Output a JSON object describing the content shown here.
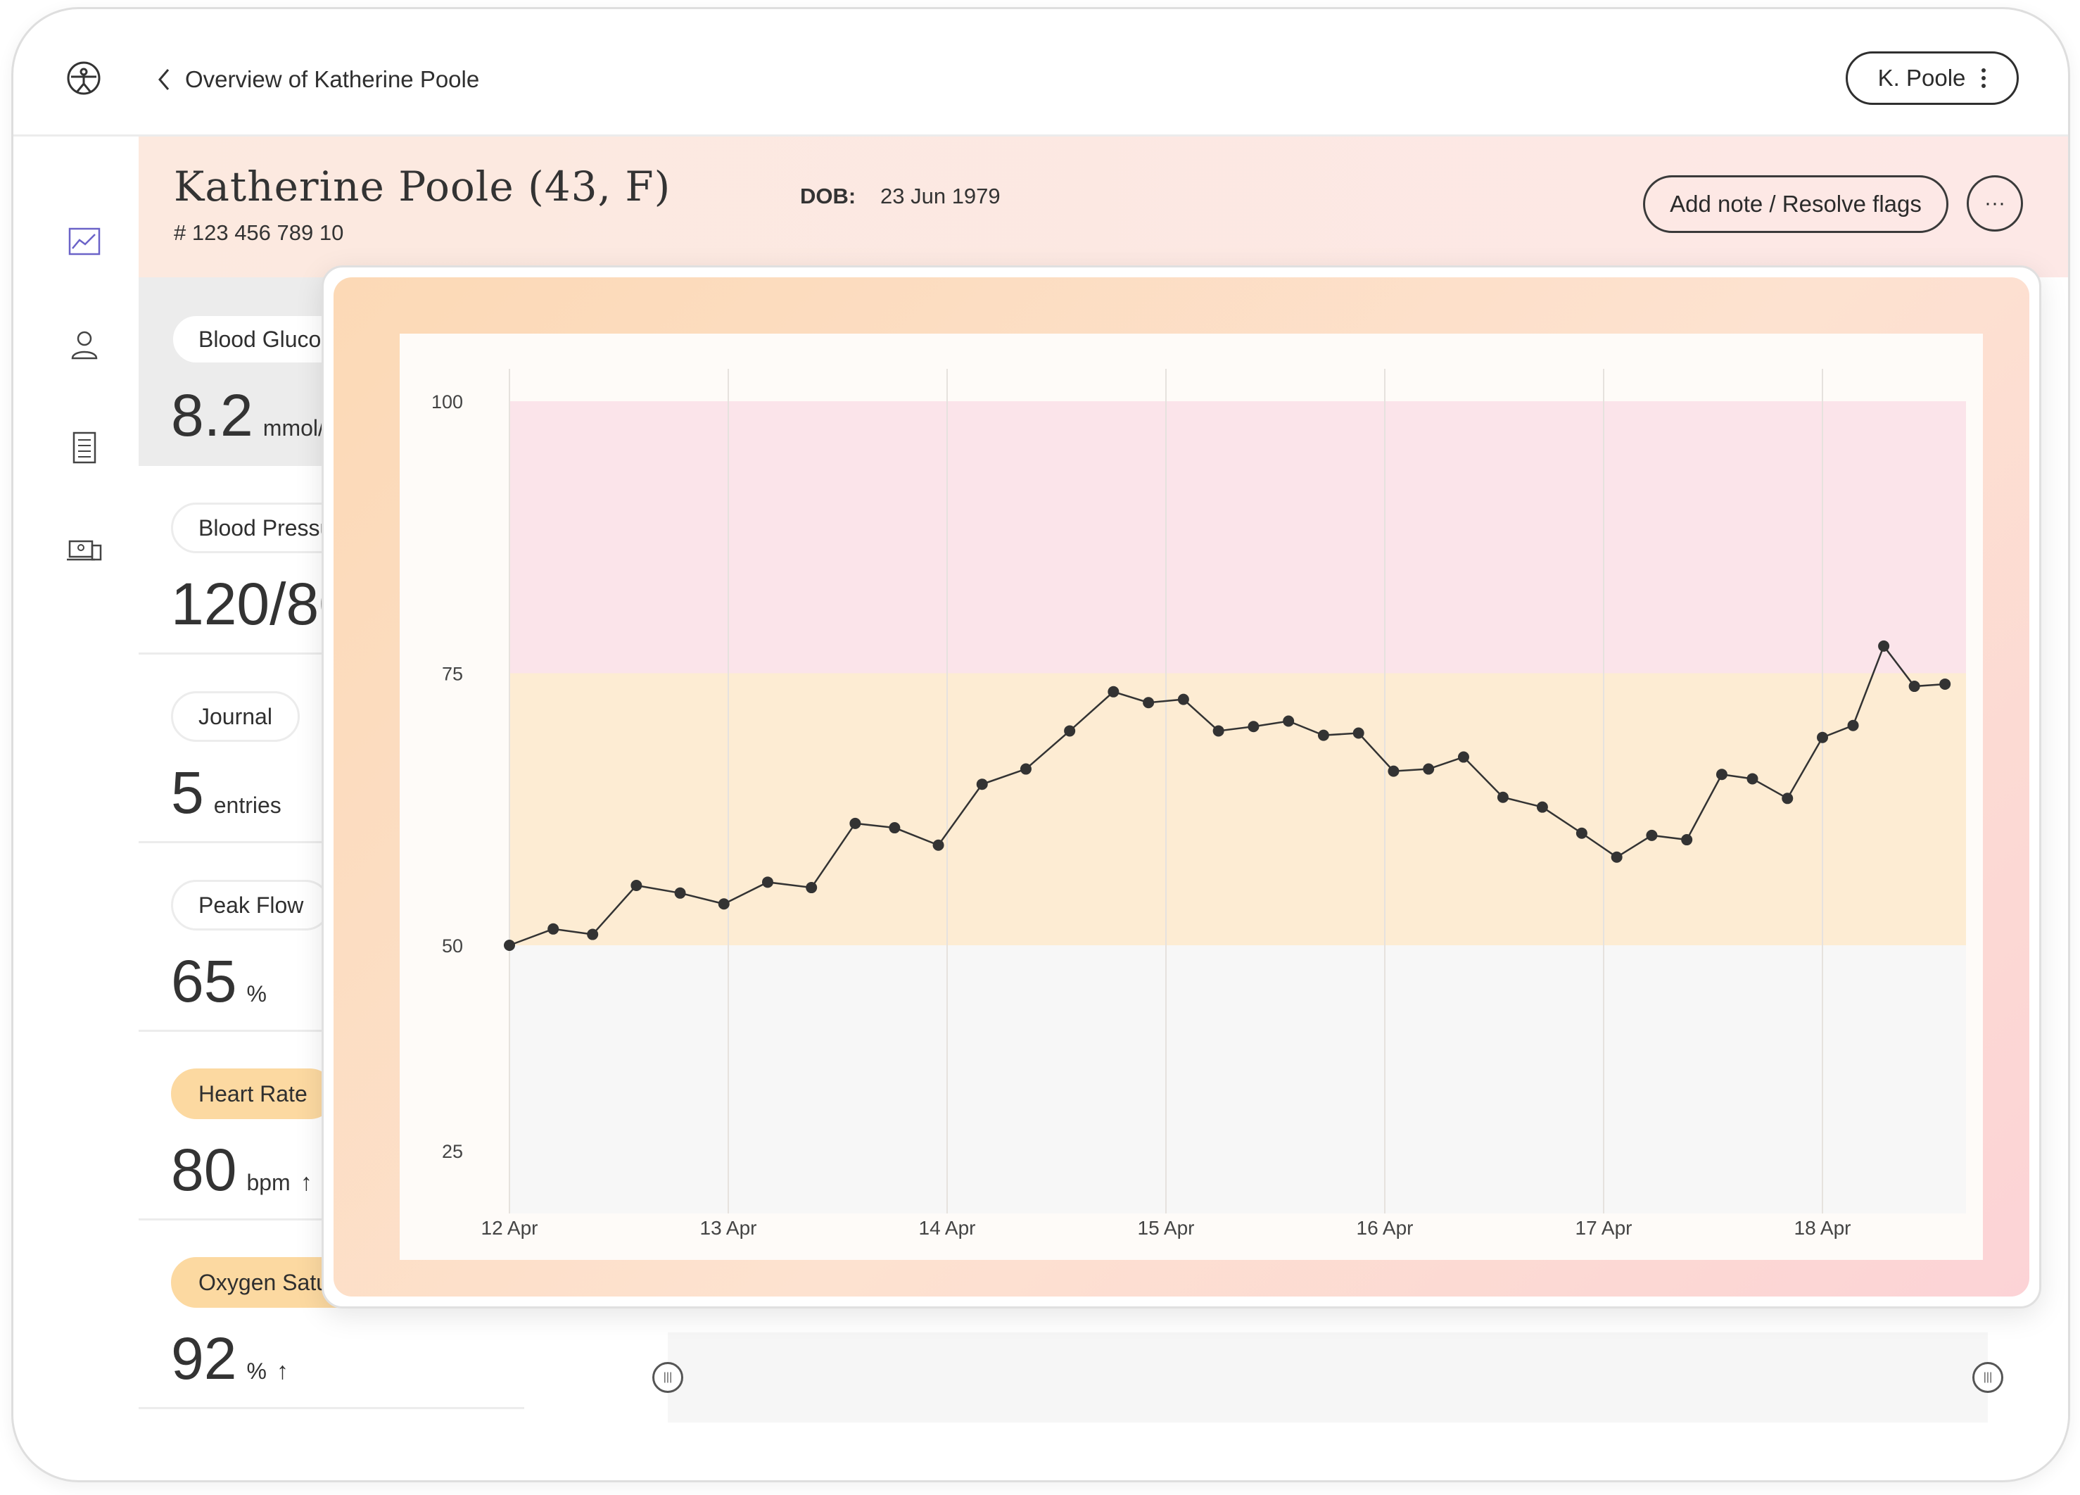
{
  "topbar": {
    "back_label": "Overview of Katherine Poole",
    "user_label": "K. Poole"
  },
  "nav": {
    "items": [
      {
        "icon": "chart-icon",
        "active": true
      },
      {
        "icon": "person-icon",
        "active": false
      },
      {
        "icon": "document-icon",
        "active": false
      },
      {
        "icon": "devices-icon",
        "active": false
      }
    ]
  },
  "header": {
    "name": "Katherine Poole (43, F)",
    "id": "# 123 456 789 10",
    "dob_label": "DOB:",
    "dob_value": "23 Jun 1979",
    "add_note_label": "Add note / Resolve flags",
    "more_label": "···"
  },
  "metrics": [
    {
      "label": "Blood Glucose",
      "value": "8.2",
      "unit": "mmol/L",
      "arrow": "↑",
      "flag": "none",
      "active": true
    },
    {
      "label": "Blood Pressure",
      "value": "120/80",
      "unit": "",
      "arrow": "",
      "flag": "none",
      "active": false
    },
    {
      "label": "Journal",
      "value": "5",
      "unit": "entries",
      "arrow": "",
      "flag": "none",
      "active": false
    },
    {
      "label": "Peak Flow",
      "value": "65",
      "unit": "%",
      "arrow": "",
      "flag": "none",
      "active": false
    },
    {
      "label": "Heart Rate",
      "value": "80",
      "unit": "bpm",
      "arrow": "↑",
      "flag": "warning",
      "active": false
    },
    {
      "label": "Oxygen Saturation",
      "value": "92",
      "unit": "%",
      "arrow": "↑",
      "flag": "warning",
      "active": false
    }
  ],
  "colors": {
    "accent": "#6b63c8",
    "warning_pill": "#fcd9a1",
    "band_high": "#fbe4ea",
    "band_mid": "#fdecd3",
    "band_low": "#f7f7f7",
    "line": "#333333"
  },
  "chart_data": {
    "type": "line",
    "title": "",
    "xlabel": "",
    "ylabel": "",
    "x_ticks": [
      "12 Apr",
      "13 Apr",
      "14 Apr",
      "15 Apr",
      "16 Apr",
      "17 Apr",
      "18 Apr"
    ],
    "y_ticks": [
      25,
      50,
      75,
      100
    ],
    "ylim": [
      25,
      100
    ],
    "xlim": [
      0,
      6.6
    ],
    "grid": "vertical",
    "bands": [
      {
        "from": 75,
        "to": 100,
        "level": "high"
      },
      {
        "from": 50,
        "to": 75,
        "level": "elevated"
      },
      {
        "from": 25,
        "to": 50,
        "level": "normal"
      }
    ],
    "series": [
      {
        "x": [
          0,
          0.2,
          0.38,
          0.58,
          0.78,
          0.98,
          1.18,
          1.38,
          1.58,
          1.76,
          1.96,
          2.16,
          2.36,
          2.56,
          2.76,
          2.92,
          3.08,
          3.24,
          3.4,
          3.56,
          3.72,
          3.88,
          4.04,
          4.2,
          4.36,
          4.54,
          4.72,
          4.9,
          5.06,
          5.22,
          5.38,
          5.54,
          5.68,
          5.84,
          6.0,
          6.14,
          6.28,
          6.42,
          6.56
        ],
        "y": [
          50,
          51.5,
          51,
          55.5,
          54.8,
          53.8,
          55.8,
          55.3,
          61.2,
          60.8,
          59.2,
          64.8,
          66.2,
          69.7,
          73.3,
          72.3,
          72.6,
          69.7,
          70.1,
          70.6,
          69.3,
          69.5,
          66,
          66.2,
          67.3,
          63.6,
          62.7,
          60.3,
          58.1,
          60.1,
          59.7,
          65.7,
          65.3,
          63.5,
          69.1,
          70.2,
          77.5,
          73.8,
          74
        ]
      }
    ]
  }
}
